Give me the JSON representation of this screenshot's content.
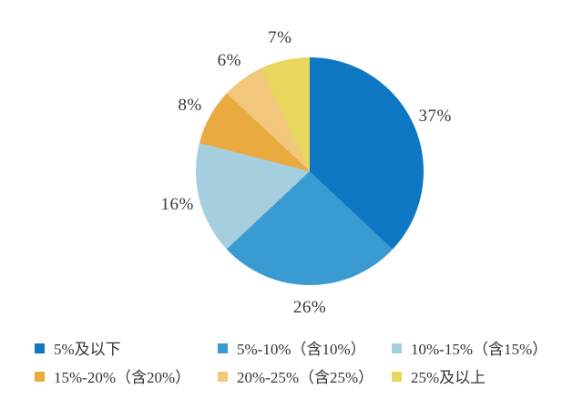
{
  "chart_data": {
    "type": "pie",
    "title": "",
    "start_angle_deg": 0,
    "direction": "clockwise",
    "legend_position": "bottom",
    "legend_rows": 2,
    "legend_columns": 3,
    "background": "#ffffff",
    "label_color": "#383838",
    "slices": [
      {
        "label": "5%及以下",
        "value": 37,
        "percent_label": "37%",
        "color": "#0D77C2"
      },
      {
        "label": "5%-10%（含10%）",
        "value": 26,
        "percent_label": "26%",
        "color": "#3A9BD2"
      },
      {
        "label": "10%-15%（含15%）",
        "value": 16,
        "percent_label": "16%",
        "color": "#A5CFDE"
      },
      {
        "label": "15%-20%（含20%）",
        "value": 8,
        "percent_label": "8%",
        "color": "#EAAA40"
      },
      {
        "label": "20%-25%（含25%）",
        "value": 6,
        "percent_label": "6%",
        "color": "#F0C77B"
      },
      {
        "label": "25%及以上",
        "value": 7,
        "percent_label": "7%",
        "color": "#E7D75E"
      }
    ]
  }
}
